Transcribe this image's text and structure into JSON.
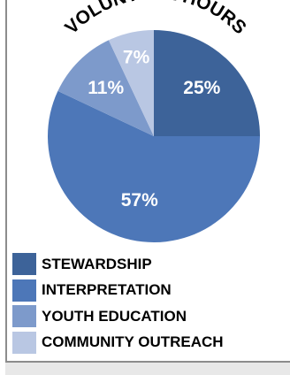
{
  "chart_data": {
    "type": "pie",
    "title": "VOLUNTEER HOURS",
    "categories": [
      "STEWARDSHIP",
      "INTERPRETATION",
      "YOUTH EDUCATION",
      "COMMUNITY OUTREACH"
    ],
    "values": [
      25,
      57,
      11,
      7
    ],
    "value_labels": [
      "25%",
      "57%",
      "11%",
      "7%"
    ],
    "colors": [
      "#3d6399",
      "#4d77b8",
      "#7d9acb",
      "#b9c7e3"
    ],
    "label_color": "#ffffff",
    "legend_position": "bottom"
  }
}
